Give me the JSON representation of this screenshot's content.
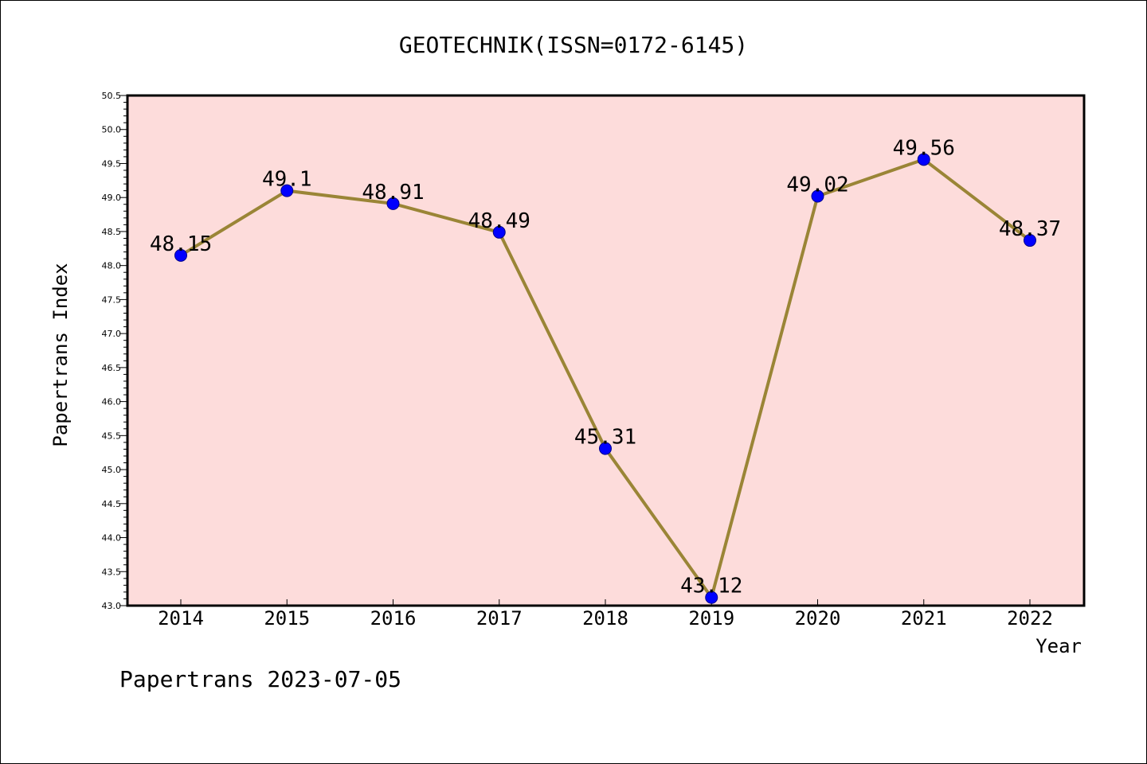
{
  "chart_data": {
    "type": "line",
    "title": "GEOTECHNIK(ISSN=0172-6145)",
    "xlabel": "Year",
    "ylabel": "Papertrans Index",
    "categories": [
      "2014",
      "2015",
      "2016",
      "2017",
      "2018",
      "2019",
      "2020",
      "2021",
      "2022"
    ],
    "series": [
      {
        "values": [
          48.15,
          49.1,
          48.91,
          48.49,
          45.31,
          43.12,
          49.02,
          49.56,
          48.37
        ]
      }
    ],
    "data_labels": [
      "48.15",
      "49.1",
      "48.91",
      "48.49",
      "45.31",
      "43.12",
      "49.02",
      "49.56",
      "48.37"
    ],
    "ylim": [
      43.0,
      50.5
    ],
    "yticks": [
      "43.0",
      "43.5",
      "44.0",
      "44.5",
      "45.0",
      "45.5",
      "46.0",
      "46.5",
      "47.0",
      "47.5",
      "48.0",
      "48.5",
      "49.0",
      "49.5",
      "50.0",
      "50.5"
    ],
    "grid": false,
    "legend": "none",
    "colors": {
      "plot_background": "#fddcdb",
      "line": "#9a8536",
      "marker": "#0000ff"
    }
  },
  "footer": "Papertrans 2023-07-05"
}
